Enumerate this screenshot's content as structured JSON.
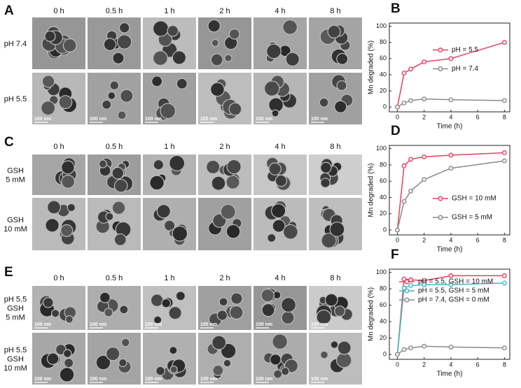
{
  "image_panels": [
    {
      "label": "A",
      "times": [
        "0 h",
        "0.5 h",
        "1 h",
        "2 h",
        "4 h",
        "8 h"
      ],
      "rows": [
        [
          "pH 7.4"
        ],
        [
          "pH 5.5"
        ]
      ]
    },
    {
      "label": "C",
      "times": [
        "0 h",
        "0.5 h",
        "1 h",
        "2 h",
        "4 h",
        "8 h"
      ],
      "rows": [
        [
          "GSH",
          "5 mM"
        ],
        [
          "GSH",
          "10 mM"
        ]
      ]
    },
    {
      "label": "E",
      "times": [
        "0 h",
        "0.5 h",
        "1 h",
        "2 h",
        "4 h",
        "8 h"
      ],
      "rows": [
        [
          "pH 5.5",
          "GSH",
          "5 mM"
        ],
        [
          "pH 5.5",
          "GSH",
          "10 mM"
        ]
      ]
    }
  ],
  "scale_bar": "100 nm",
  "chart_data": [
    {
      "type": "line",
      "panel_label": "B",
      "xlabel": "Time (h)",
      "ylabel": "Mn degraded (%)",
      "x": [
        0,
        0.5,
        1,
        2,
        4,
        8
      ],
      "xlim": [
        -0.6,
        8.4
      ],
      "xticks": [
        0,
        2,
        4,
        6,
        8
      ],
      "ylim": [
        -6,
        104
      ],
      "yticks": [
        0,
        20,
        40,
        60,
        80,
        100
      ],
      "legend": "center right",
      "series": [
        {
          "name": "pH = 5.5",
          "color": "#e5405e",
          "values": [
            0,
            42,
            47,
            56,
            60,
            80
          ]
        },
        {
          "name": "pH = 7.4",
          "color": "#8a8a8a",
          "values": [
            0,
            5,
            8,
            10,
            9,
            8
          ]
        }
      ]
    },
    {
      "type": "line",
      "panel_label": "D",
      "xlabel": "Time (h)",
      "ylabel": "Mn degraded (%)",
      "x": [
        0,
        0.5,
        1,
        2,
        4,
        8
      ],
      "xlim": [
        -0.6,
        8.4
      ],
      "xticks": [
        0,
        2,
        4,
        6,
        8
      ],
      "ylim": [
        -6,
        104
      ],
      "yticks": [
        0,
        20,
        40,
        60,
        80,
        100
      ],
      "legend": "lower right",
      "series": [
        {
          "name": "GSH = 10 mM",
          "color": "#e5405e",
          "values": [
            0,
            79,
            87,
            90,
            92,
            95
          ]
        },
        {
          "name": "GSH = 5 mM",
          "color": "#8a8a8a",
          "values": [
            0,
            35,
            48,
            62,
            76,
            85
          ]
        }
      ]
    },
    {
      "type": "line",
      "panel_label": "F",
      "xlabel": "Time (h)",
      "ylabel": "Mn degraded (%)",
      "x": [
        0,
        0.5,
        1,
        2,
        4,
        8
      ],
      "xlim": [
        -0.6,
        8.4
      ],
      "xticks": [
        0,
        2,
        4,
        6,
        8
      ],
      "ylim": [
        -6,
        104
      ],
      "yticks": [
        0,
        20,
        40,
        60,
        80,
        100
      ],
      "legend": "upper right",
      "series": [
        {
          "name": "pH = 5.5, GSH = 10 mM",
          "color": "#e5405e",
          "values": [
            0,
            92,
            91,
            90,
            96,
            96
          ]
        },
        {
          "name": "pH = 5.5, GSH = 5 mM",
          "color": "#3fb8c8",
          "values": [
            0,
            81,
            84,
            85,
            85,
            87
          ]
        },
        {
          "name": "pH = 7.4, GSH = 0 mM",
          "color": "#8a8a8a",
          "values": [
            0,
            6,
            8,
            10,
            9,
            8
          ]
        }
      ]
    }
  ]
}
